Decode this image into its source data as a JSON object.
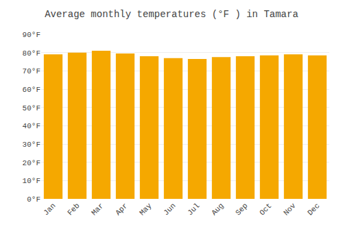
{
  "chart_data": {
    "type": "bar",
    "title": "Average monthly temperatures (°F ) in Tamara",
    "categories": [
      "Jan",
      "Feb",
      "Mar",
      "Apr",
      "May",
      "Jun",
      "Jul",
      "Aug",
      "Sep",
      "Oct",
      "Nov",
      "Dec"
    ],
    "values": [
      79,
      80,
      81,
      79.5,
      78,
      77,
      76.5,
      77.5,
      78,
      78.5,
      79,
      78.5
    ],
    "color": "#F5A800",
    "ylim": [
      0,
      90
    ],
    "yticks": [
      {
        "value": 0,
        "label": "0°F"
      },
      {
        "value": 10,
        "label": "10°F"
      },
      {
        "value": 20,
        "label": "20°F"
      },
      {
        "value": 30,
        "label": "30°F"
      },
      {
        "value": 40,
        "label": "40°F"
      },
      {
        "value": 50,
        "label": "50°F"
      },
      {
        "value": 60,
        "label": "60°F"
      },
      {
        "value": 70,
        "label": "70°F"
      },
      {
        "value": 80,
        "label": "80°F"
      },
      {
        "value": 90,
        "label": "90°F"
      }
    ],
    "grid": true
  }
}
